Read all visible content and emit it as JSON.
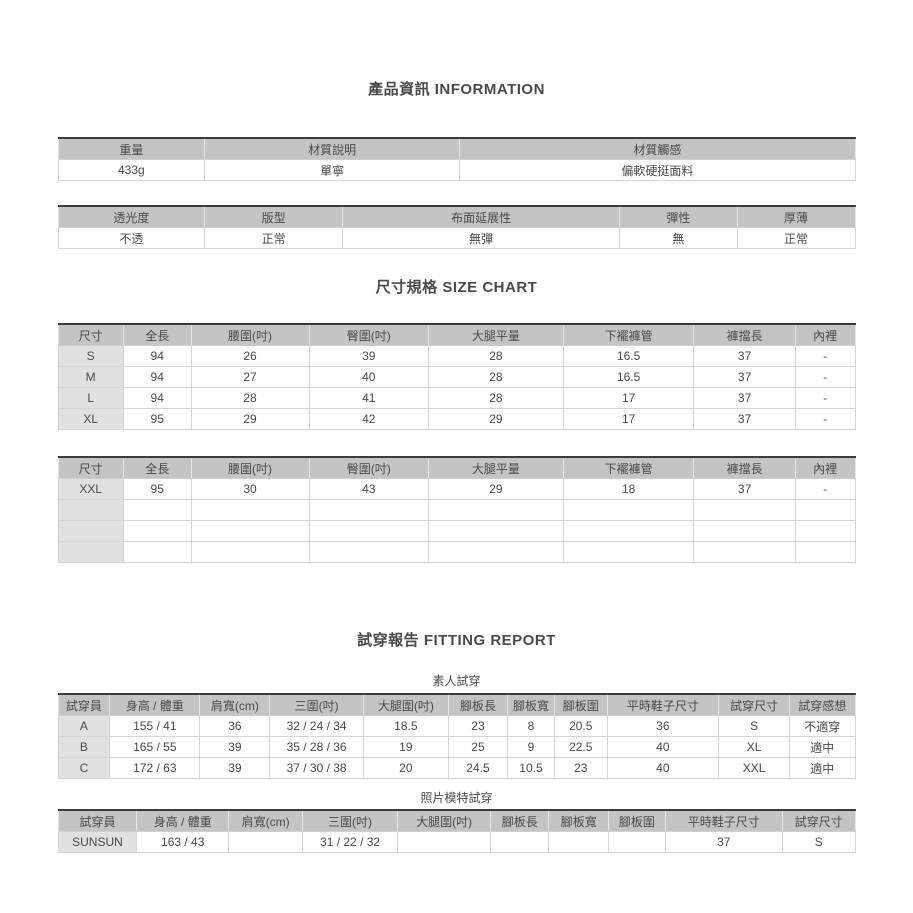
{
  "titles": {
    "info": "產品資訊 INFORMATION",
    "size": "尺寸規格 SIZE CHART",
    "fitting": "試穿報告 FITTING REPORT",
    "amateur": "素人試穿",
    "model": "照片模特試穿"
  },
  "colors": {
    "header_bg": "#c4c4c4",
    "label_col_bg": "#e1e1e1",
    "table_top_border": "#3c3c3c",
    "grid_border": "#d6d6d6",
    "text": "#4a4a4a"
  },
  "info_table_1": {
    "headers": [
      "重量",
      "材質說明",
      "材質觸感"
    ],
    "rows": [
      [
        "433g",
        "單寧",
        "偏軟硬挺面料"
      ]
    ]
  },
  "info_table_2": {
    "headers": [
      "透光度",
      "版型",
      "布面延展性",
      "彈性",
      "厚薄"
    ],
    "rows": [
      [
        "不透",
        "正常",
        "無彈",
        "無",
        "正常"
      ]
    ]
  },
  "size_table_1": {
    "headers": [
      "尺寸",
      "全長",
      "腰圍(吋)",
      "臀圍(吋)",
      "大腿平量",
      "下襬褲管",
      "褲擋長",
      "內裡"
    ],
    "rows": [
      [
        "S",
        "94",
        "26",
        "39",
        "28",
        "16.5",
        "37",
        "-"
      ],
      [
        "M",
        "94",
        "27",
        "40",
        "28",
        "16.5",
        "37",
        "-"
      ],
      [
        "L",
        "94",
        "28",
        "41",
        "28",
        "17",
        "37",
        "-"
      ],
      [
        "XL",
        "95",
        "29",
        "42",
        "29",
        "17",
        "37",
        "-"
      ]
    ]
  },
  "size_table_2": {
    "headers": [
      "尺寸",
      "全長",
      "腰圍(吋)",
      "臀圍(吋)",
      "大腿平量",
      "下襬褲管",
      "褲擋長",
      "內裡"
    ],
    "rows": [
      [
        "XXL",
        "95",
        "30",
        "43",
        "29",
        "18",
        "37",
        "-"
      ],
      [
        "",
        "",
        "",
        "",
        "",
        "",
        "",
        ""
      ],
      [
        "",
        "",
        "",
        "",
        "",
        "",
        "",
        ""
      ],
      [
        "",
        "",
        "",
        "",
        "",
        "",
        "",
        ""
      ]
    ]
  },
  "fitting_table": {
    "headers": [
      "試穿員",
      "身高 / 體重",
      "肩寬(cm)",
      "三圍(吋)",
      "大腿圍(吋)",
      "腳板長",
      "腳板寬",
      "腳板圍",
      "平時鞋子尺寸",
      "試穿尺寸",
      "試穿感想"
    ],
    "rows": [
      [
        "A",
        "155 / 41",
        "36",
        "32 / 24 / 34",
        "18.5",
        "23",
        "8",
        "20.5",
        "36",
        "S",
        "不適穿"
      ],
      [
        "B",
        "165 / 55",
        "39",
        "35 / 28 / 36",
        "19",
        "25",
        "9",
        "22.5",
        "40",
        "XL",
        "適中"
      ],
      [
        "C",
        "172 / 63",
        "39",
        "37 / 30 / 38",
        "20",
        "24.5",
        "10.5",
        "23",
        "40",
        "XXL",
        "適中"
      ]
    ]
  },
  "model_table": {
    "headers": [
      "試穿員",
      "身高 / 體重",
      "肩寬(cm)",
      "三圍(吋)",
      "大腿圍(吋)",
      "腳板長",
      "腳板寬",
      "腳板圍",
      "平時鞋子尺寸",
      "試穿尺寸"
    ],
    "rows": [
      [
        "SUNSUN",
        "163 / 43",
        "",
        "31 / 22 / 32",
        "",
        "",
        "",
        "",
        "37",
        "S"
      ]
    ]
  }
}
